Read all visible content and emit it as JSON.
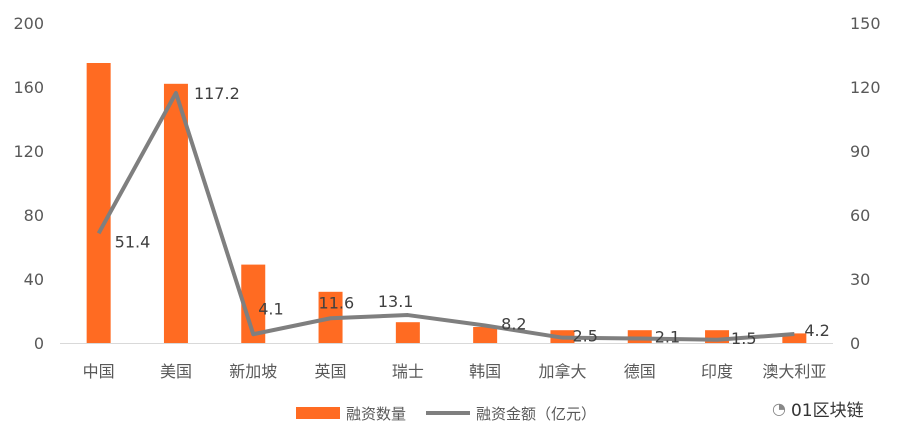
{
  "chart_data": {
    "type": "bar",
    "categories": [
      "中国",
      "美国",
      "新加坡",
      "英国",
      "瑞士",
      "韩国",
      "加拿大",
      "德国",
      "印度",
      "澳大利亚"
    ],
    "series": [
      {
        "name": "融资数量",
        "type": "bar",
        "axis": "left",
        "color": "#FF6B22",
        "values": [
          175,
          162,
          49,
          32,
          13,
          10,
          8,
          8,
          8,
          6
        ]
      },
      {
        "name": "融资金额（亿元）",
        "type": "line",
        "axis": "right",
        "color": "#7F7F7F",
        "values": [
          51.4,
          117.2,
          4.1,
          11.6,
          13.1,
          8.2,
          2.5,
          2.1,
          1.5,
          4.2
        ],
        "labels": [
          "51.4",
          "117.2",
          "4.1",
          "11.6",
          "13.1",
          "8.2",
          "2.5",
          "2.1",
          "1.5",
          "4.2"
        ]
      }
    ],
    "ylim_left": [
      0,
      200
    ],
    "yticks_left": [
      "0",
      "40",
      "80",
      "120",
      "160",
      "200"
    ],
    "ylim_right": [
      0,
      150
    ],
    "yticks_right": [
      "0",
      "30",
      "60",
      "90",
      "120",
      "150"
    ],
    "grid": false,
    "legend": "bottom"
  },
  "watermark": "01区块链"
}
